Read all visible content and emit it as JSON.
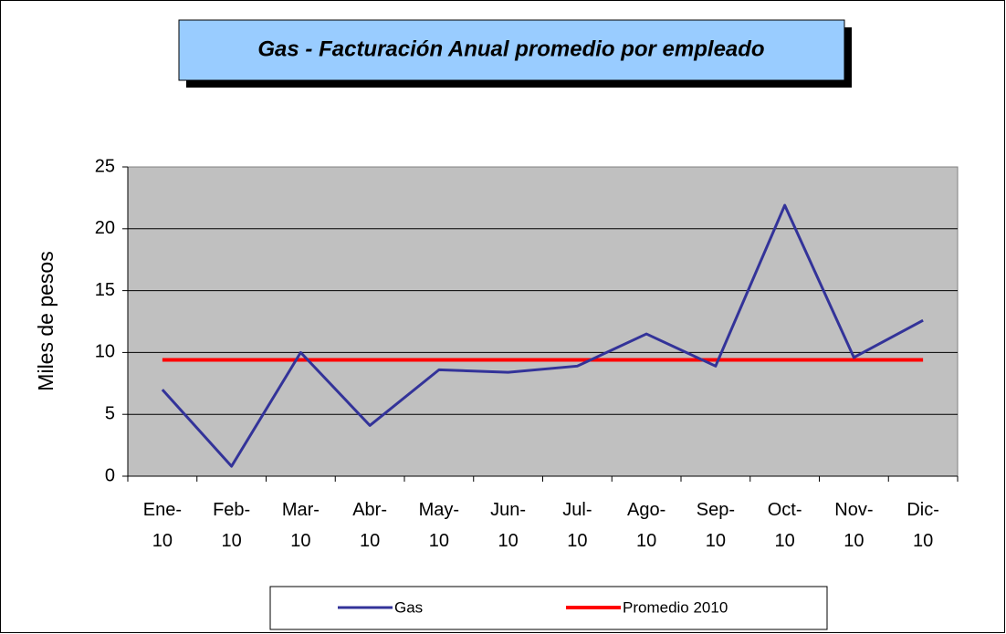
{
  "chart_data": {
    "type": "line",
    "title": "Gas - Facturación Anual promedio por empleado",
    "y_label": "Miles de pesos",
    "categories": [
      "Ene-10",
      "Feb-10",
      "Mar-10",
      "Abr-10",
      "May-10",
      "Jun-10",
      "Jul-10",
      "Ago-10",
      "Sep-10",
      "Oct-10",
      "Nov-10",
      "Dic-10"
    ],
    "series": [
      {
        "name": "Gas",
        "color": "#333399",
        "values": [
          7.0,
          0.8,
          10.0,
          4.1,
          8.6,
          8.4,
          8.9,
          11.5,
          8.9,
          21.9,
          9.6,
          12.6
        ]
      },
      {
        "name": "Promedio 2010",
        "color": "#ff0000",
        "values": [
          9.4,
          9.4,
          9.4,
          9.4,
          9.4,
          9.4,
          9.4,
          9.4,
          9.4,
          9.4,
          9.4,
          9.4
        ]
      }
    ],
    "ylim": [
      0,
      25
    ],
    "yticks": [
      0,
      5,
      10,
      15,
      20,
      25
    ],
    "grid": true,
    "legend": "bottom"
  }
}
